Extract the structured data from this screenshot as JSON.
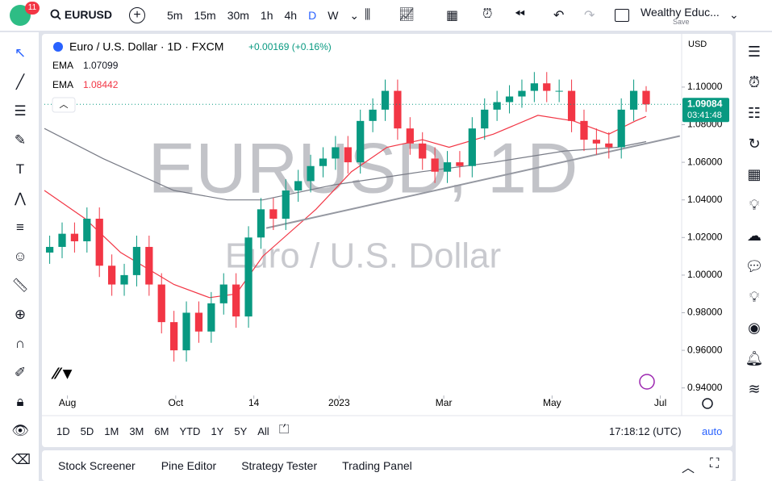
{
  "toolbar": {
    "notification_count": "11",
    "symbol": "EURUSD",
    "intervals": [
      "5m",
      "15m",
      "30m",
      "1h",
      "4h",
      "D",
      "W"
    ],
    "layout_name": "Wealthy Educ...",
    "save": "Save"
  },
  "chart_data": {
    "type": "candlestick",
    "title": "Euro / U.S. Dollar · 1D · FXCM",
    "change": "+0.00169 (+0.16%)",
    "currency": "USD",
    "watermark": [
      "EURUSD, 1D",
      "Euro / U.S. Dollar"
    ],
    "x": [
      -10,
      -3,
      4,
      11,
      18,
      25,
      32,
      39,
      46,
      53,
      60,
      67,
      74,
      81,
      88,
      95,
      102,
      109,
      116,
      123,
      130,
      137,
      144,
      151,
      158,
      165,
      172,
      179,
      186,
      193,
      200,
      207,
      214,
      221,
      228,
      235,
      242,
      249,
      256,
      263,
      270,
      277,
      284,
      291,
      298,
      305,
      312,
      319,
      326
    ],
    "open": [
      1.012,
      1.015,
      1.022,
      1.018,
      1.03,
      1.005,
      0.995,
      1.0,
      1.015,
      0.995,
      0.975,
      0.96,
      0.98,
      0.97,
      0.985,
      0.995,
      0.978,
      1.02,
      1.035,
      1.03,
      1.045,
      1.05,
      1.058,
      1.062,
      1.068,
      1.06,
      1.082,
      1.088,
      1.098,
      1.078,
      1.07,
      1.062,
      1.055,
      1.06,
      1.058,
      1.078,
      1.088,
      1.092,
      1.095,
      1.098,
      1.102,
      1.098,
      1.098,
      1.082,
      1.072,
      1.07,
      1.068,
      1.088,
      1.098
    ],
    "high": [
      1.021,
      1.028,
      1.028,
      1.036,
      1.036,
      1.011,
      1.006,
      1.021,
      1.021,
      1.001,
      0.981,
      0.986,
      0.986,
      0.991,
      1.001,
      1.001,
      1.026,
      1.041,
      1.041,
      1.051,
      1.056,
      1.064,
      1.068,
      1.074,
      1.074,
      1.088,
      1.094,
      1.104,
      1.104,
      1.084,
      1.076,
      1.068,
      1.066,
      1.066,
      1.084,
      1.094,
      1.098,
      1.101,
      1.104,
      1.108,
      1.108,
      1.104,
      1.104,
      1.088,
      1.078,
      1.076,
      1.094,
      1.104,
      1.1005
    ],
    "low": [
      1.006,
      1.009,
      1.012,
      1.012,
      0.999,
      0.989,
      0.989,
      0.994,
      0.989,
      0.969,
      0.954,
      0.954,
      0.964,
      0.964,
      0.979,
      0.972,
      0.972,
      1.014,
      1.024,
      1.024,
      1.039,
      1.044,
      1.052,
      1.056,
      1.054,
      1.054,
      1.076,
      1.082,
      1.072,
      1.064,
      1.056,
      1.049,
      1.049,
      1.052,
      1.052,
      1.072,
      1.082,
      1.086,
      1.089,
      1.092,
      1.092,
      1.092,
      1.076,
      1.066,
      1.064,
      1.062,
      1.062,
      1.082,
      1.0868
    ],
    "close": [
      1.015,
      1.022,
      1.018,
      1.03,
      1.005,
      0.995,
      1.0,
      1.015,
      0.995,
      0.975,
      0.96,
      0.98,
      0.97,
      0.985,
      0.995,
      0.978,
      1.02,
      1.035,
      1.03,
      1.045,
      1.05,
      1.058,
      1.062,
      1.068,
      1.06,
      1.082,
      1.088,
      1.098,
      1.078,
      1.07,
      1.062,
      1.055,
      1.06,
      1.058,
      1.078,
      1.088,
      1.092,
      1.095,
      1.098,
      1.102,
      1.098,
      1.098,
      1.082,
      1.072,
      1.07,
      1.068,
      1.088,
      1.098,
      1.0908
    ],
    "up_color": "#089981",
    "down_color": "#f23645",
    "series": [
      {
        "name": "EMA",
        "value_label": "1.07099",
        "color": "#787b86",
        "x": [
          -13,
          20,
          60,
          90,
          110,
          150,
          200,
          240,
          280,
          310,
          326
        ],
        "values": [
          1.078,
          1.062,
          1.045,
          1.04,
          1.04,
          1.048,
          1.055,
          1.06,
          1.066,
          1.068,
          1.071
        ]
      },
      {
        "name": "EMA",
        "value_label": "1.08442",
        "color": "#f23645",
        "x": [
          -13,
          10,
          30,
          60,
          80,
          95,
          110,
          140,
          160,
          180,
          200,
          215,
          240,
          265,
          285,
          305,
          320,
          326
        ],
        "values": [
          1.045,
          1.03,
          1.012,
          0.995,
          0.988,
          0.99,
          1.01,
          1.035,
          1.055,
          1.068,
          1.072,
          1.068,
          1.075,
          1.085,
          1.082,
          1.075,
          1.082,
          1.0844
        ]
      }
    ],
    "trendline": {
      "x": [
        112,
        345
      ],
      "values": [
        1.025,
        1.074
      ],
      "color": "#9598a1"
    },
    "last_price": {
      "value": 1.09084,
      "label": "1.09084",
      "countdown": "03:41:48"
    },
    "xlim": [
      -13,
      346
    ],
    "ylim": [
      0.936,
      1.127
    ],
    "xticks": [
      {
        "value": 0,
        "label": "Aug"
      },
      {
        "value": 61,
        "label": "Oct"
      },
      {
        "value": 105,
        "label": "14"
      },
      {
        "value": 153,
        "label": "2023"
      },
      {
        "value": 212,
        "label": "Mar"
      },
      {
        "value": 273,
        "label": "May"
      },
      {
        "value": 334,
        "label": "Jul"
      }
    ],
    "yticks": [
      {
        "value": 0.94,
        "label": "0.94000"
      },
      {
        "value": 0.96,
        "label": "0.96000"
      },
      {
        "value": 0.98,
        "label": "0.98000"
      },
      {
        "value": 1.0,
        "label": "1.00000"
      },
      {
        "value": 1.02,
        "label": "1.02000"
      },
      {
        "value": 1.04,
        "label": "1.04000"
      },
      {
        "value": 1.06,
        "label": "1.06000"
      },
      {
        "value": 1.08,
        "label": "1.08000"
      },
      {
        "value": 1.1,
        "label": "1.10000"
      }
    ],
    "grid": false
  },
  "range_bar": {
    "ranges": [
      "1D",
      "5D",
      "1M",
      "3M",
      "6M",
      "YTD",
      "1Y",
      "5Y",
      "All"
    ],
    "clock": "17:18:12 (UTC)",
    "scale_mode": "auto"
  },
  "bottom_panel": {
    "tabs": [
      "Stock Screener",
      "Pine Editor",
      "Strategy Tester",
      "Trading Panel"
    ]
  }
}
